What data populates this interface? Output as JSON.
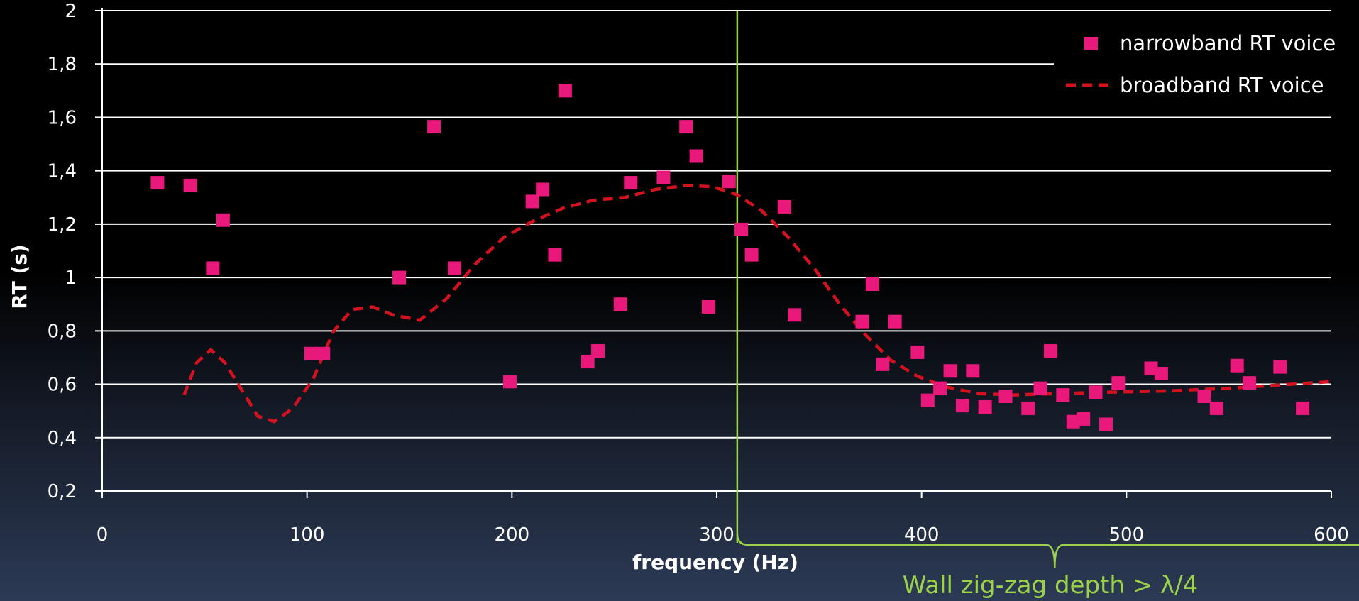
{
  "chart_data": {
    "type": "scatter",
    "xlabel": "frequency (Hz)",
    "ylabel": "RT (s)",
    "xlim": [
      0,
      600
    ],
    "ylim": [
      0.2,
      2
    ],
    "x_ticks": [
      0,
      100,
      200,
      300,
      400,
      500,
      600
    ],
    "x_tick_labels": [
      "0",
      "100",
      "200",
      "300",
      "400",
      "500",
      "600"
    ],
    "y_ticks": [
      0.2,
      0.4,
      0.6,
      0.8,
      1.0,
      1.2,
      1.4,
      1.6,
      1.8,
      2.0
    ],
    "y_tick_labels": [
      "0,2",
      "0,4",
      "0,6",
      "0,8",
      "1",
      "1,2",
      "1,4",
      "1,6",
      "1,8",
      "2"
    ],
    "grid": true,
    "legend_position": "top-right",
    "series": [
      {
        "name": "narrowband RT voice",
        "type": "scatter",
        "marker": "square",
        "color": "#e8197a",
        "points": [
          [
            27,
            1.355
          ],
          [
            43,
            1.345
          ],
          [
            54,
            1.035
          ],
          [
            59,
            1.215
          ],
          [
            102,
            0.715
          ],
          [
            108,
            0.715
          ],
          [
            145,
            1.0
          ],
          [
            162,
            1.565
          ],
          [
            172,
            1.035
          ],
          [
            199,
            0.61
          ],
          [
            210,
            1.285
          ],
          [
            215,
            1.33
          ],
          [
            221,
            1.085
          ],
          [
            226,
            1.7
          ],
          [
            237,
            0.685
          ],
          [
            242,
            0.725
          ],
          [
            253,
            0.9
          ],
          [
            258,
            1.355
          ],
          [
            274,
            1.375
          ],
          [
            285,
            1.565
          ],
          [
            290,
            1.455
          ],
          [
            296,
            0.89
          ],
          [
            306,
            1.36
          ],
          [
            312,
            1.18
          ],
          [
            317,
            1.085
          ],
          [
            333,
            1.265
          ],
          [
            338,
            0.86
          ],
          [
            371,
            0.835
          ],
          [
            376,
            0.975
          ],
          [
            381,
            0.675
          ],
          [
            387,
            0.835
          ],
          [
            398,
            0.72
          ],
          [
            403,
            0.54
          ],
          [
            409,
            0.585
          ],
          [
            414,
            0.65
          ],
          [
            420,
            0.52
          ],
          [
            425,
            0.65
          ],
          [
            431,
            0.515
          ],
          [
            441,
            0.555
          ],
          [
            452,
            0.51
          ],
          [
            458,
            0.585
          ],
          [
            463,
            0.725
          ],
          [
            469,
            0.56
          ],
          [
            474,
            0.46
          ],
          [
            479,
            0.47
          ],
          [
            485,
            0.57
          ],
          [
            490,
            0.45
          ],
          [
            496,
            0.605
          ],
          [
            512,
            0.66
          ],
          [
            517,
            0.64
          ],
          [
            538,
            0.555
          ],
          [
            544,
            0.51
          ],
          [
            554,
            0.67
          ],
          [
            560,
            0.605
          ],
          [
            575,
            0.665
          ],
          [
            586,
            0.51
          ]
        ]
      },
      {
        "name": "broadband RT voice",
        "type": "line",
        "style": "dashed",
        "color": "#d2121e",
        "points": [
          [
            40,
            0.56
          ],
          [
            46,
            0.68
          ],
          [
            53,
            0.73
          ],
          [
            60,
            0.68
          ],
          [
            68,
            0.58
          ],
          [
            76,
            0.48
          ],
          [
            84,
            0.46
          ],
          [
            93,
            0.51
          ],
          [
            103,
            0.62
          ],
          [
            113,
            0.8
          ],
          [
            122,
            0.88
          ],
          [
            132,
            0.89
          ],
          [
            142,
            0.86
          ],
          [
            155,
            0.84
          ],
          [
            168,
            0.92
          ],
          [
            182,
            1.05
          ],
          [
            196,
            1.15
          ],
          [
            210,
            1.21
          ],
          [
            225,
            1.26
          ],
          [
            240,
            1.29
          ],
          [
            255,
            1.3
          ],
          [
            270,
            1.33
          ],
          [
            285,
            1.345
          ],
          [
            298,
            1.34
          ],
          [
            310,
            1.31
          ],
          [
            322,
            1.25
          ],
          [
            335,
            1.15
          ],
          [
            348,
            1.03
          ],
          [
            360,
            0.9
          ],
          [
            372,
            0.79
          ],
          [
            385,
            0.69
          ],
          [
            398,
            0.63
          ],
          [
            412,
            0.59
          ],
          [
            428,
            0.565
          ],
          [
            445,
            0.56
          ],
          [
            465,
            0.565
          ],
          [
            490,
            0.57
          ],
          [
            520,
            0.575
          ],
          [
            550,
            0.585
          ],
          [
            580,
            0.6
          ],
          [
            600,
            0.61
          ]
        ]
      }
    ],
    "annotations": {
      "vertical_line": {
        "x": 310,
        "color": "#9bd24a"
      },
      "brace": {
        "from_x": 310,
        "to_x": 600
      },
      "note": "Wall zig-zag depth > λ/4"
    }
  }
}
